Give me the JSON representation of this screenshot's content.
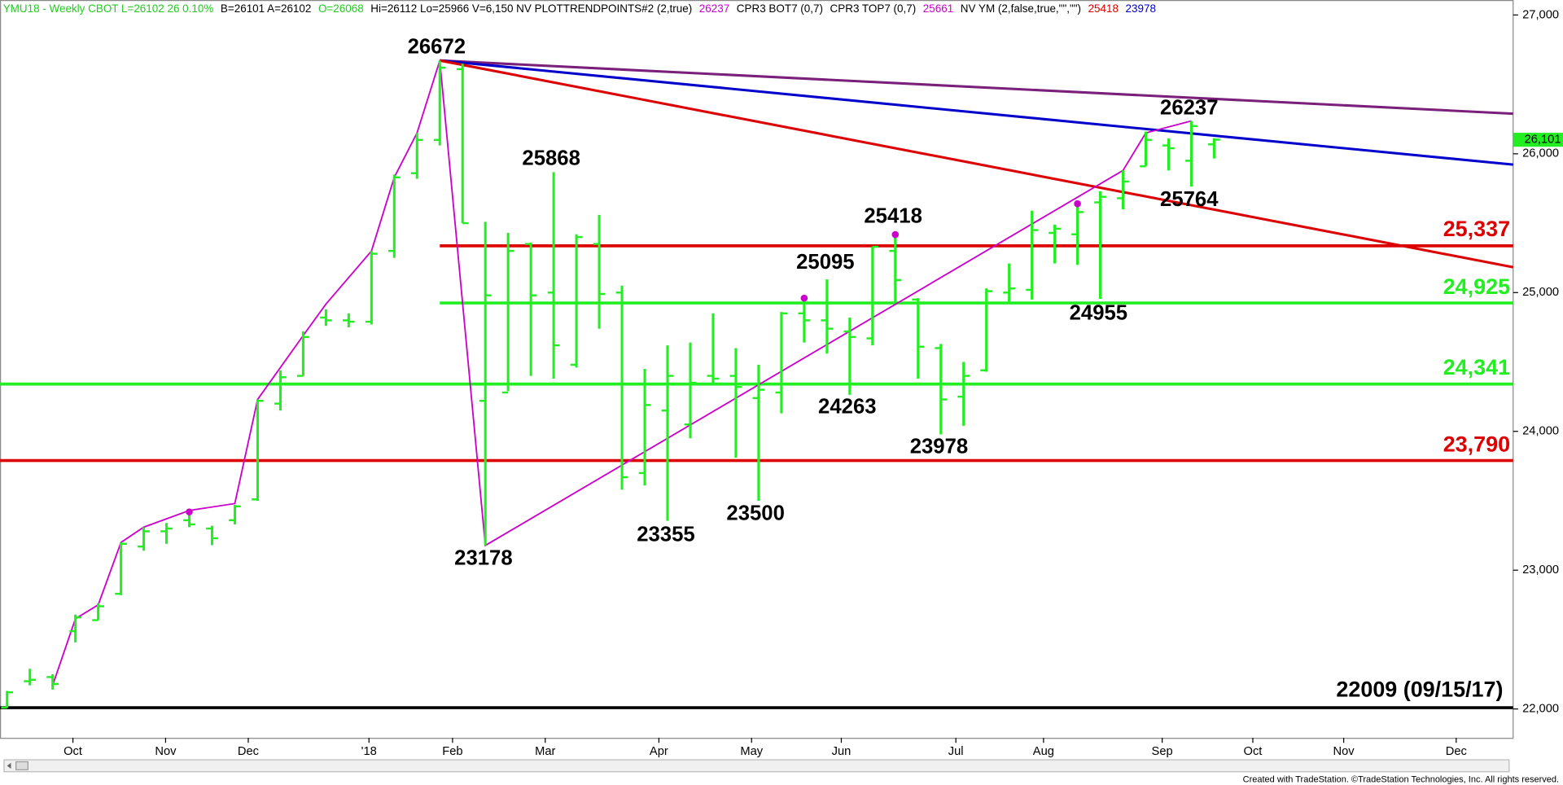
{
  "header": [
    {
      "text": "YMU18 - Weekly  CBOT  L=26102  26  0.10%",
      "color": "#22cc22"
    },
    {
      "text": "B=26101  A=26102",
      "color": "#000000"
    },
    {
      "text": "O=26068",
      "color": "#22cc22"
    },
    {
      "text": "Hi=26112  Lo=25966  V=6,150  NV  PLOTTRENDPOINTS#2 (2,true)",
      "color": "#000000"
    },
    {
      "text": "26237",
      "color": "#cc00cc"
    },
    {
      "text": "CPR3 BOT7 (0,7)",
      "color": "#000000"
    },
    {
      "text": "CPR3 TOP7 (0,7)",
      "color": "#000000"
    },
    {
      "text": "25661",
      "color": "#cc00cc"
    },
    {
      "text": "NV YM (2,false,true,\"\",\"\")",
      "color": "#000000"
    },
    {
      "text": "25418",
      "color": "#dd0000"
    },
    {
      "text": "23978",
      "color": "#0000cc"
    }
  ],
  "footer": "Created with TradeStation. ©TradeStation Technologies, Inc. All rights reserved.",
  "chart_data": {
    "type": "ohlc",
    "color": "#22ee22",
    "xlim": [
      -0.31,
      66.13
    ],
    "ylim": [
      21792,
      27108
    ],
    "xticks": [
      {
        "value": 2.89,
        "label": "Oct"
      },
      {
        "value": 6.96,
        "label": "Nov"
      },
      {
        "value": 10.59,
        "label": "Dec"
      },
      {
        "value": 15.89,
        "label": "'18"
      },
      {
        "value": 19.56,
        "label": "Feb"
      },
      {
        "value": 23.63,
        "label": "Mar"
      },
      {
        "value": 28.62,
        "label": "Apr"
      },
      {
        "value": 32.69,
        "label": "May"
      },
      {
        "value": 36.63,
        "label": "Jun"
      },
      {
        "value": 41.66,
        "label": "Jul"
      },
      {
        "value": 45.51,
        "label": "Aug"
      },
      {
        "value": 50.72,
        "label": "Sep"
      },
      {
        "value": 54.7,
        "label": "Oct"
      },
      {
        "value": 58.69,
        "label": "Nov"
      },
      {
        "value": 63.63,
        "label": "Dec"
      }
    ],
    "yticks": [
      {
        "value": 22000,
        "label": "22,000"
      },
      {
        "value": 23000,
        "label": "23,000"
      },
      {
        "value": 24000,
        "label": "24,000"
      },
      {
        "value": 25000,
        "label": "25,000"
      },
      {
        "value": 26000,
        "label": "26,000"
      },
      {
        "value": 27000,
        "label": "27,000"
      }
    ],
    "x": [
      0,
      1,
      2,
      3,
      4,
      5,
      6,
      7,
      8,
      9,
      10,
      11,
      12,
      13,
      14,
      15,
      16,
      17,
      18,
      19,
      20,
      21,
      22,
      23,
      24,
      25,
      26,
      27,
      28,
      29,
      30,
      31,
      32,
      33,
      34,
      35,
      36,
      37,
      38,
      39,
      40,
      41,
      42,
      43,
      44,
      45,
      46,
      47,
      48,
      49,
      50,
      51,
      52,
      53
    ],
    "open": [
      22010,
      22200,
      22230,
      22560,
      22640,
      22830,
      23170,
      23280,
      23360,
      23300,
      23360,
      23510,
      24200,
      24400,
      24820,
      24800,
      24790,
      25300,
      25860,
      26100,
      26610,
      24220,
      24280,
      25350,
      25000,
      24480,
      25350,
      25000,
      23700,
      24150,
      24050,
      24400,
      24400,
      24240,
      24280,
      24850,
      24800,
      24720,
      24670,
      25300,
      24950,
      24600,
      24250,
      24440,
      25000,
      25020,
      25430,
      25420,
      25650,
      25680,
      25910,
      26060,
      25950,
      26068
    ],
    "high": [
      22130,
      22290,
      22250,
      22680,
      22760,
      23200,
      23310,
      23340,
      23420,
      23320,
      23470,
      24230,
      24440,
      24720,
      24880,
      24850,
      25300,
      25850,
      26150,
      26672,
      26650,
      25510,
      25430,
      25360,
      25868,
      25420,
      25560,
      25050,
      24450,
      24620,
      24640,
      24850,
      24600,
      24480,
      24860,
      24960,
      25095,
      24820,
      25330,
      25418,
      24960,
      24630,
      24500,
      25030,
      25210,
      25590,
      25490,
      25640,
      25730,
      25880,
      26160,
      26110,
      26237,
      26112
    ],
    "low": [
      22009,
      22170,
      22140,
      22480,
      22640,
      22820,
      23140,
      23190,
      23310,
      23180,
      23330,
      23500,
      24150,
      24400,
      24760,
      24750,
      24770,
      25250,
      25820,
      26060,
      25500,
      23178,
      24290,
      24400,
      24380,
      24460,
      24740,
      23580,
      23610,
      23355,
      23950,
      24330,
      23810,
      23500,
      24130,
      24640,
      24560,
      24263,
      24620,
      24930,
      24380,
      23978,
      24040,
      24430,
      24920,
      24950,
      25210,
      25200,
      24955,
      25600,
      25910,
      25880,
      25764,
      25966
    ],
    "close": [
      22120,
      22210,
      22180,
      22660,
      22740,
      23190,
      23280,
      23300,
      23330,
      23230,
      23460,
      24220,
      24390,
      24680,
      24800,
      24790,
      25280,
      25830,
      26100,
      26620,
      25500,
      24980,
      25300,
      24980,
      24620,
      25400,
      24990,
      23670,
      24190,
      24400,
      24350,
      24380,
      24320,
      24300,
      24850,
      24800,
      24740,
      24680,
      25330,
      25090,
      24610,
      24230,
      24400,
      25010,
      25030,
      25450,
      25460,
      25580,
      25690,
      25800,
      26100,
      26040,
      26200,
      26102
    ],
    "levels": [
      {
        "value": 25337,
        "label": "25,337",
        "color": "#dd0000",
        "from_x": 19
      },
      {
        "value": 24925,
        "label": "24,925",
        "color": "#22ee22",
        "from_x": 19
      },
      {
        "value": 24341,
        "label": "24,341",
        "color": "#22ee22",
        "from_x": -0.31
      },
      {
        "value": 23790,
        "label": "23,790",
        "color": "#dd0000",
        "from_x": -0.31
      },
      {
        "value": 22009,
        "label": "22009 (09/15/17)",
        "color": "#000000",
        "from_x": -0.31
      }
    ],
    "trend_lines": [
      {
        "color": "#7a1f7a",
        "x": [
          19,
          66.13
        ],
        "values": [
          26672,
          26289
        ]
      },
      {
        "color": "#0000cc",
        "x": [
          19,
          66.13
        ],
        "values": [
          26672,
          25922
        ]
      },
      {
        "color": "#dd0000",
        "x": [
          19,
          66.13
        ],
        "values": [
          26672,
          25183
        ]
      }
    ],
    "swing": {
      "color": "#cc00cc",
      "x": [
        2,
        3,
        4,
        5,
        6,
        8,
        10,
        11,
        13,
        14,
        16,
        17,
        18,
        19,
        21,
        49,
        50,
        52
      ],
      "values": [
        22170,
        22650,
        22750,
        23200,
        23310,
        23430,
        23480,
        24230,
        24690,
        24917,
        25300,
        25830,
        26150,
        26672,
        23178,
        25880,
        26150,
        26237
      ]
    },
    "trend_points": {
      "color": "#cc00cc",
      "x": [
        8,
        35,
        39,
        47
      ],
      "values": [
        23420,
        24960,
        25418,
        25640
      ]
    },
    "annotations": [
      "26672",
      "23178",
      "25868",
      "25418",
      "25095",
      "24263",
      "23978",
      "23500",
      "23355",
      "26237",
      "25764",
      "24955"
    ],
    "last_price": {
      "value": 26101,
      "label": "26,101"
    }
  }
}
